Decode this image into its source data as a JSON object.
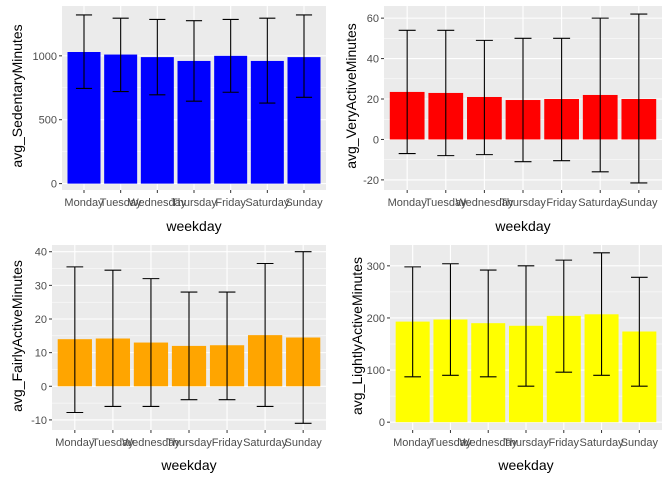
{
  "chart_data": [
    {
      "type": "bar",
      "xlabel": "weekday",
      "ylabel": "avg_SedentaryMinutes",
      "color": "#0000ff",
      "categories": [
        "Monday",
        "Tuesday",
        "Wednesday",
        "Thursday",
        "Friday",
        "Saturday",
        "Sunday"
      ],
      "values": [
        1030,
        1010,
        990,
        960,
        1000,
        960,
        990
      ],
      "error_low": [
        745,
        720,
        695,
        645,
        715,
        630,
        675
      ],
      "error_high": [
        1320,
        1295,
        1285,
        1275,
        1285,
        1295,
        1320
      ],
      "yticks": [
        0,
        500,
        1000
      ],
      "ylim": [
        -50,
        1390
      ],
      "grid": true
    },
    {
      "type": "bar",
      "xlabel": "weekday",
      "ylabel": "avg_VeryActiveMinutes",
      "color": "#ff0000",
      "categories": [
        "Monday",
        "Tuesday",
        "Wednesday",
        "Thursday",
        "Friday",
        "Saturday",
        "Sunday"
      ],
      "values": [
        23.5,
        23,
        21,
        19.5,
        20,
        22,
        20
      ],
      "error_low": [
        -7,
        -8,
        -7.5,
        -11,
        -10.5,
        -16,
        -21.5
      ],
      "error_high": [
        54,
        54,
        49,
        50,
        50,
        60,
        62
      ],
      "yticks": [
        -20,
        0,
        20,
        40,
        60
      ],
      "ylim": [
        -25,
        66
      ],
      "grid": true
    },
    {
      "type": "bar",
      "xlabel": "weekday",
      "ylabel": "avg_FairlyActiveMinutes",
      "color": "#ffa500",
      "categories": [
        "Monday",
        "Tuesday",
        "Wednesday",
        "Thursday",
        "Friday",
        "Saturday",
        "Sunday"
      ],
      "values": [
        14,
        14.2,
        13,
        12,
        12.2,
        15.2,
        14.5
      ],
      "error_low": [
        -7.8,
        -6,
        -6,
        -4,
        -4,
        -6,
        -11
      ],
      "error_high": [
        35.5,
        34.5,
        32,
        28,
        28,
        36.5,
        40
      ],
      "yticks": [
        -10,
        0,
        10,
        20,
        30,
        40
      ],
      "ylim": [
        -13,
        42
      ],
      "grid": true
    },
    {
      "type": "bar",
      "xlabel": "weekday",
      "ylabel": "avg_LightlyActiveMinutes",
      "color": "#ffff00",
      "categories": [
        "Monday",
        "Tuesday",
        "Wednesday",
        "Thursday",
        "Friday",
        "Saturday",
        "Sunday"
      ],
      "values": [
        193,
        197,
        190,
        185,
        204,
        207,
        174
      ],
      "error_low": [
        87,
        90,
        87,
        69,
        96,
        90,
        69
      ],
      "error_high": [
        298,
        304,
        292,
        300,
        311,
        325,
        278
      ],
      "yticks": [
        0,
        100,
        200,
        300
      ],
      "ylim": [
        -15,
        340
      ],
      "grid": true
    }
  ]
}
